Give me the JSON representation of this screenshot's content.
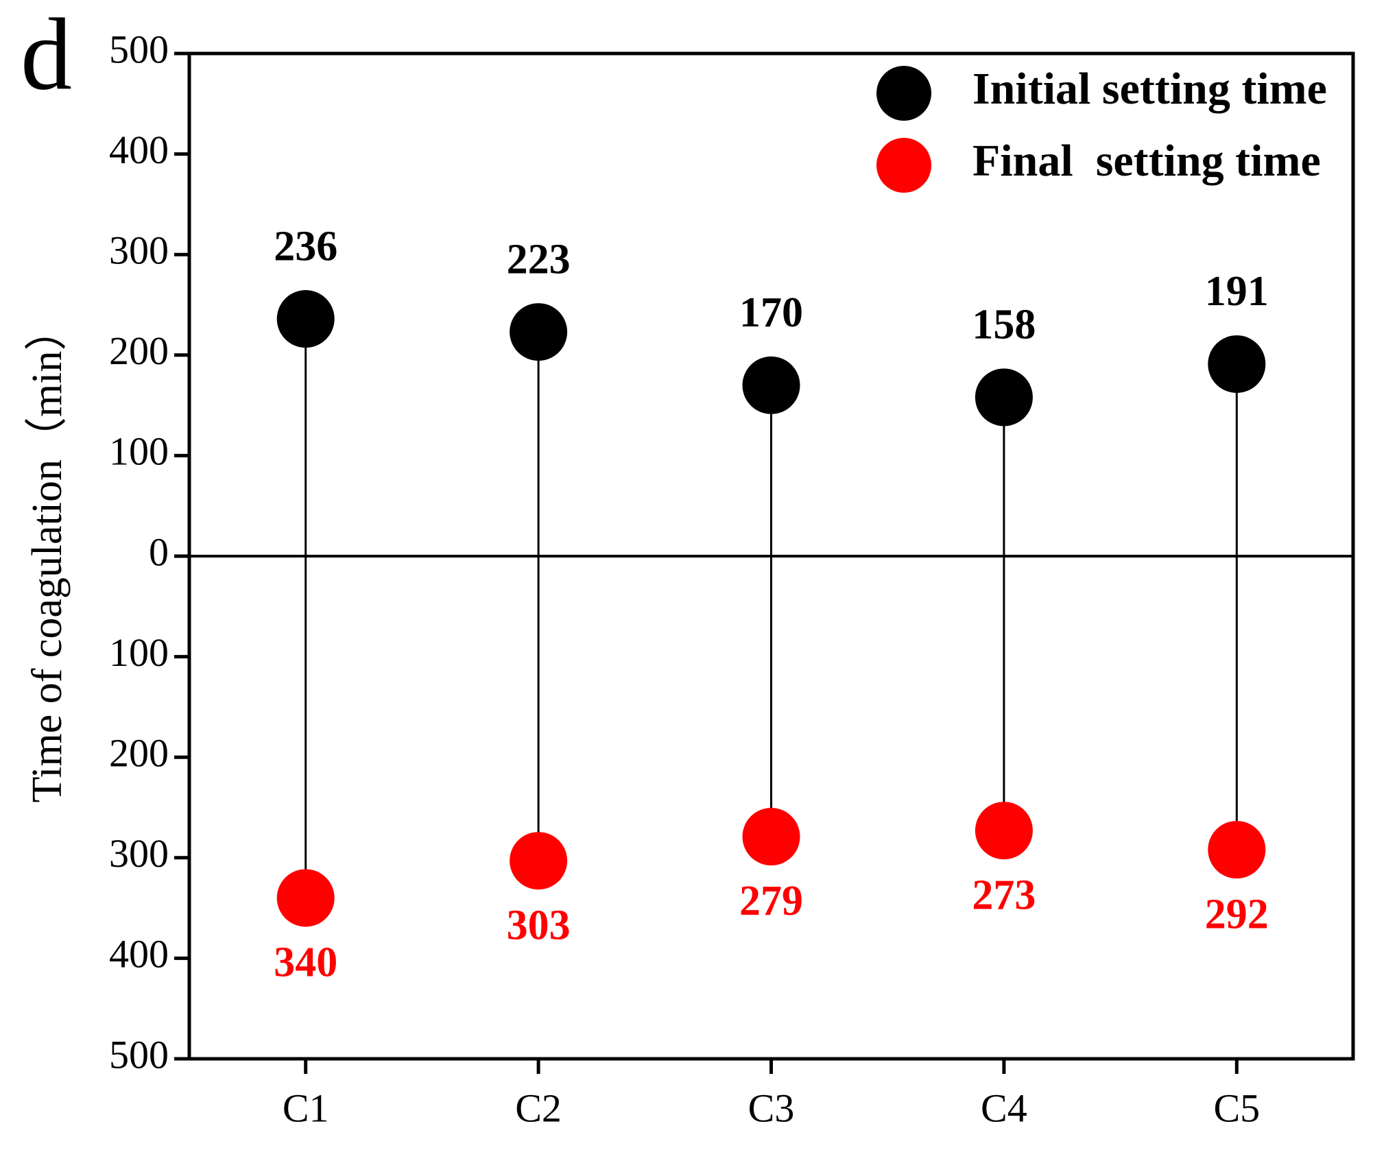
{
  "chart_data": {
    "type": "dot",
    "panel_label": "d",
    "y_label": "Time of coagulation（min）",
    "categories": [
      "C1",
      "C2",
      "C3",
      "C4",
      "C5"
    ],
    "series": [
      {
        "name": "Initial setting time",
        "color": "#000000",
        "values": [
          236,
          223,
          170,
          158,
          191
        ]
      },
      {
        "name": "Final  setting time",
        "color": "#ff0000",
        "values": [
          -340,
          -303,
          -279,
          -273,
          -292
        ],
        "value_labels": [
          "340",
          "303",
          "279",
          "273",
          "292"
        ]
      }
    ],
    "ylim": [
      -500,
      500
    ],
    "yticks": [
      {
        "value": -500,
        "label": "500"
      },
      {
        "value": -400,
        "label": "400"
      },
      {
        "value": -300,
        "label": "300"
      },
      {
        "value": -200,
        "label": "200"
      },
      {
        "value": -100,
        "label": "100"
      },
      0,
      100,
      200,
      300,
      400,
      500
    ],
    "legend": "upper right"
  }
}
